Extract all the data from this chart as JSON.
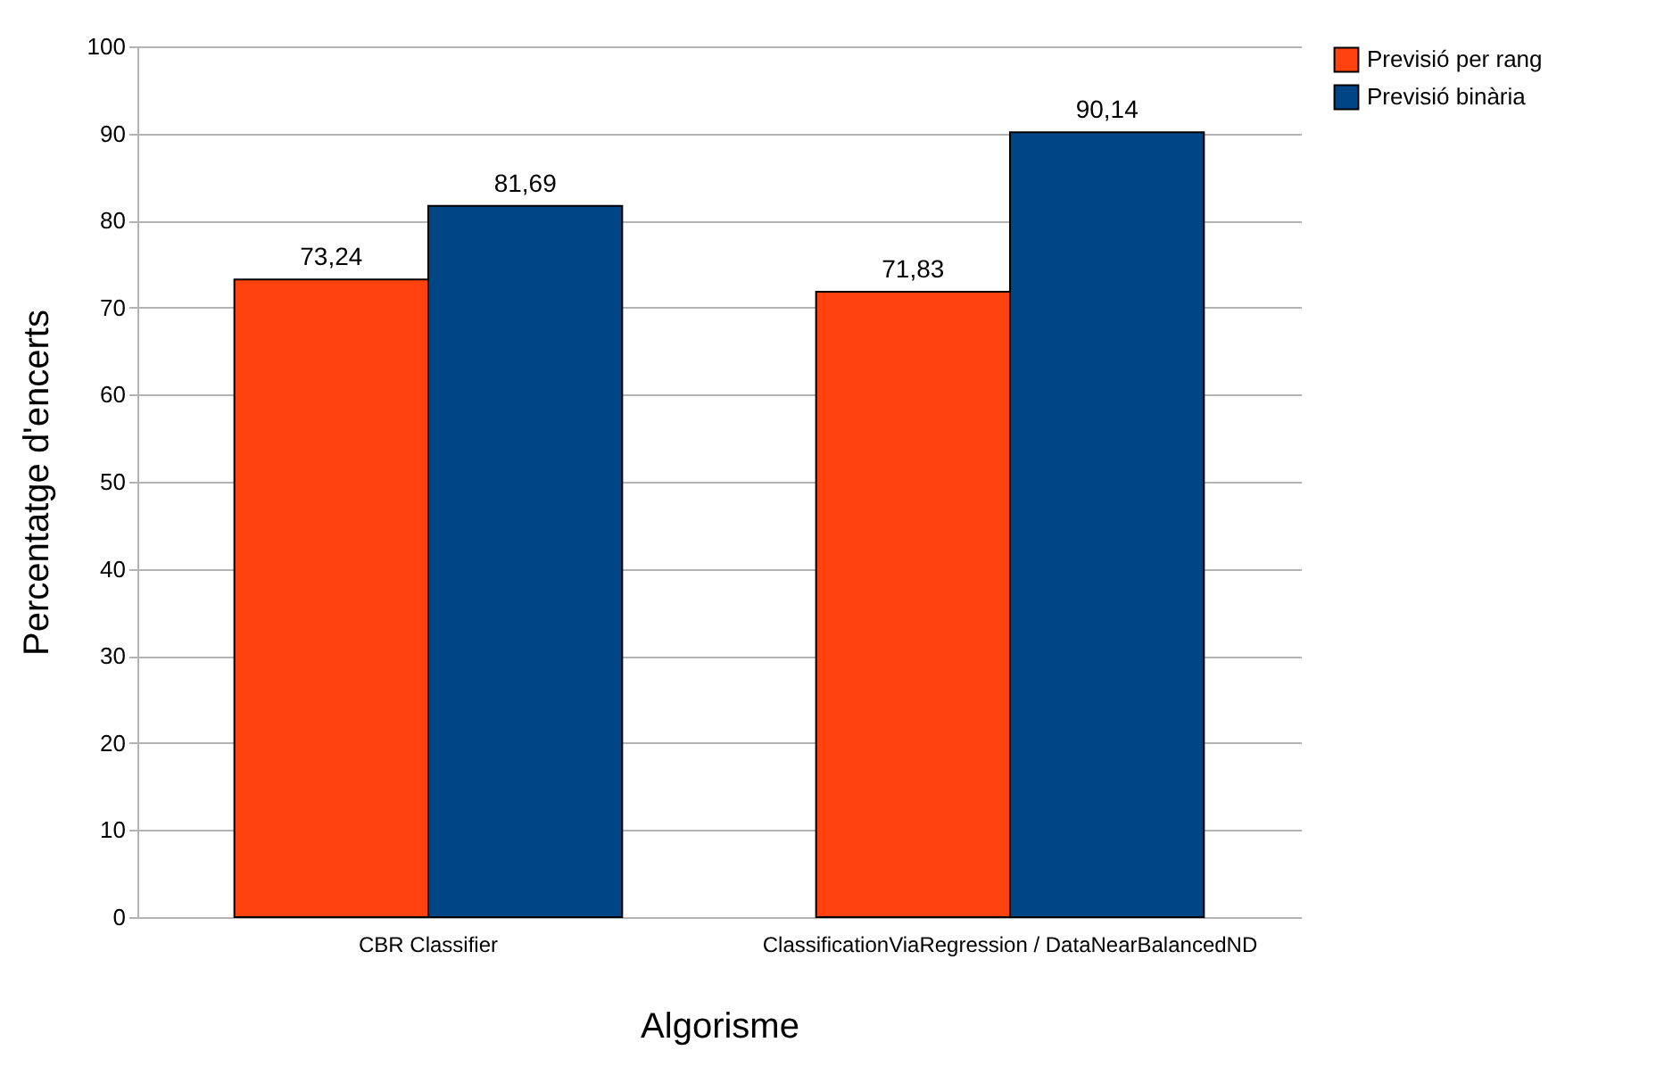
{
  "chart_data": {
    "type": "bar",
    "xlabel": "Algorisme",
    "ylabel": "Percentatge d'encerts",
    "categories": [
      "CBR Classifier",
      "ClassificationViaRegression / DataNearBalancedND"
    ],
    "series": [
      {
        "name": "Previsió per rang",
        "color": "#ff420e",
        "values": [
          73.24,
          71.83
        ],
        "value_labels": [
          "73,24",
          "71,83"
        ]
      },
      {
        "name": "Previsió binària",
        "color": "#004586",
        "values": [
          81.69,
          90.14
        ],
        "value_labels": [
          "81,69",
          "90,14"
        ]
      }
    ],
    "ylim": [
      0,
      100
    ],
    "yticks": [
      0,
      10,
      20,
      30,
      40,
      50,
      60,
      70,
      80,
      90,
      100
    ],
    "grid": "y",
    "legend": "right"
  }
}
